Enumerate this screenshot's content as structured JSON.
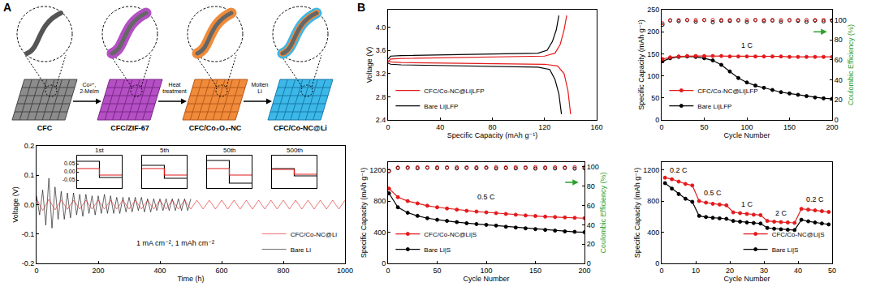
{
  "panel_labels": [
    "A",
    "B"
  ],
  "diagram": {
    "stages": [
      {
        "label": "CFC"
      },
      {
        "label": "CFC/ZIF-67"
      },
      {
        "label": "CFC/Co₃O₄-NC"
      },
      {
        "label": "CFC/Co-NC@Li"
      }
    ],
    "steps": [
      [
        "Co²⁺,",
        "2-MeIm"
      ],
      [
        "Heat",
        "treatment"
      ],
      [
        "Molten",
        "Li"
      ]
    ]
  },
  "chart_data": [
    {
      "type": "line",
      "x_label": "Time (h)",
      "y_label": "Voltage (V)",
      "xlim": [
        0,
        1000
      ],
      "xticks": [
        0,
        200,
        400,
        600,
        800,
        1000
      ],
      "ylim": [
        -0.2,
        0.2
      ],
      "yticks": [
        -0.2,
        -0.1,
        {
          "value": 0,
          "label": "0.0"
        },
        0.1,
        0.2
      ],
      "grid": false,
      "legend": "lower right",
      "annotations": [
        {
          "text": "1 mA cm⁻², 1 mAh cm⁻²",
          "x": 450,
          "y": -0.13
        }
      ],
      "series": [
        {
          "name": "Bare Li",
          "color": "#000000",
          "x": [
            0,
            10,
            20,
            30,
            40,
            50,
            60,
            70,
            80,
            90,
            100,
            110,
            120,
            130,
            140,
            150,
            160,
            170,
            180,
            190,
            200,
            210,
            220,
            230,
            240,
            250,
            260,
            270,
            280,
            290,
            300,
            310,
            320,
            330,
            340,
            350,
            360,
            370,
            380,
            390,
            400,
            410,
            420,
            430,
            440,
            450,
            460,
            470,
            480,
            490,
            500
          ],
          "values": [
            0.03,
            -0.035,
            0.05,
            -0.07,
            0.09,
            -0.08,
            0.06,
            -0.05,
            0.045,
            -0.05,
            0.04,
            -0.045,
            0.04,
            -0.035,
            0.035,
            -0.04,
            0.035,
            -0.03,
            0.03,
            -0.035,
            0.03,
            -0.03,
            0.035,
            -0.03,
            0.03,
            -0.03,
            0.025,
            -0.03,
            0.025,
            -0.025,
            0.025,
            -0.025,
            0.025,
            -0.02,
            0.025,
            -0.025,
            0.02,
            -0.025,
            0.02,
            -0.02,
            0.02,
            -0.02,
            0.02,
            -0.02,
            0.02,
            -0.02,
            0.02,
            -0.02,
            0.02,
            -0.02,
            0.02
          ]
        },
        {
          "name": "CFC/Co-NC@Li",
          "color": "#e41a1c",
          "x": [
            0,
            20,
            40,
            60,
            80,
            100,
            120,
            140,
            160,
            180,
            200,
            220,
            240,
            260,
            280,
            300,
            320,
            340,
            360,
            380,
            400,
            420,
            440,
            460,
            480,
            500,
            520,
            540,
            560,
            580,
            600,
            620,
            640,
            660,
            680,
            700,
            720,
            740,
            760,
            780,
            800,
            820,
            840,
            860,
            880,
            900,
            920,
            940,
            960,
            980,
            1000
          ],
          "values": [
            0.02,
            -0.02,
            0.018,
            -0.018,
            0.016,
            -0.016,
            0.015,
            -0.015,
            0.015,
            -0.015,
            0.015,
            -0.015,
            0.015,
            -0.015,
            0.015,
            -0.015,
            0.015,
            -0.015,
            0.015,
            -0.015,
            0.015,
            -0.015,
            0.015,
            -0.015,
            0.015,
            -0.015,
            0.015,
            -0.015,
            0.015,
            -0.015,
            0.015,
            -0.015,
            0.015,
            -0.015,
            0.015,
            -0.015,
            0.015,
            -0.015,
            0.015,
            -0.015,
            0.015,
            -0.015,
            0.015,
            -0.015,
            0.015,
            -0.015,
            0.015,
            -0.015,
            0.015,
            -0.015,
            0.015
          ]
        }
      ]
    },
    {
      "type": "line",
      "title": "1st",
      "xlim": [
        0,
        3
      ],
      "xticks": [],
      "ylim": [
        -0.1,
        0.1
      ],
      "yticks": [
        -0.05,
        {
          "value": 0,
          "label": "0.00"
        },
        0.05
      ],
      "tick_labels": "y",
      "grid": false,
      "series": [
        {
          "color": "#000000",
          "x": [
            0,
            1.5,
            1.5,
            3
          ],
          "values": [
            0.065,
            0.065,
            -0.035,
            -0.035
          ]
        },
        {
          "color": "#e41a1c",
          "x": [
            0,
            1.5,
            1.5,
            3
          ],
          "values": [
            0.02,
            0.02,
            -0.02,
            -0.02
          ]
        }
      ]
    },
    {
      "type": "line",
      "title": "5th",
      "xlim": [
        0,
        3
      ],
      "xticks": [],
      "ylim": [
        -0.1,
        0.1
      ],
      "yticks": [],
      "tick_labels": false,
      "grid": false,
      "series": [
        {
          "color": "#000000",
          "x": [
            0,
            1.5,
            1.5,
            3
          ],
          "values": [
            0.04,
            0.04,
            -0.04,
            -0.04
          ]
        },
        {
          "color": "#e41a1c",
          "x": [
            0,
            1.5,
            1.5,
            3
          ],
          "values": [
            0.02,
            0.02,
            -0.02,
            -0.02
          ]
        }
      ]
    },
    {
      "type": "line",
      "title": "50th",
      "xlim": [
        0,
        3
      ],
      "xticks": [],
      "ylim": [
        -0.1,
        0.1
      ],
      "yticks": [],
      "tick_labels": false,
      "grid": false,
      "series": [
        {
          "color": "#000000",
          "x": [
            0,
            1.5,
            1.5,
            3
          ],
          "values": [
            0.07,
            0.07,
            -0.07,
            -0.07
          ]
        },
        {
          "color": "#e41a1c",
          "x": [
            0,
            1.5,
            1.5,
            3
          ],
          "values": [
            0.02,
            0.02,
            -0.02,
            -0.02
          ]
        }
      ]
    },
    {
      "type": "line",
      "title": "500th",
      "xlim": [
        0,
        3
      ],
      "xticks": [],
      "ylim": [
        -0.1,
        0.1
      ],
      "yticks": [],
      "tick_labels": false,
      "grid": false,
      "series": [
        {
          "color": "#000000",
          "x": [
            0,
            1.5,
            1.5,
            3
          ],
          "values": [
            0.02,
            0.02,
            -0.025,
            -0.025
          ]
        },
        {
          "color": "#e41a1c",
          "x": [
            0,
            1.5,
            1.5,
            3
          ],
          "values": [
            0.015,
            0.015,
            -0.015,
            -0.015
          ]
        }
      ]
    },
    {
      "type": "line",
      "x_label": "Specific Capacity (mAh g⁻¹)",
      "y_label": "Voltage (V)",
      "xlim": [
        0,
        160
      ],
      "xticks": [
        0,
        40,
        80,
        120,
        160
      ],
      "ylim": [
        2.4,
        4.3
      ],
      "yticks": [
        2.4,
        2.8,
        3.2,
        3.6,
        {
          "value": 4,
          "label": "4.0"
        }
      ],
      "grid": false,
      "legend": "lower left",
      "series": [
        {
          "name": "Bare Li|LFP",
          "color": "#000000",
          "x": [
            0,
            2,
            10,
            40,
            80,
            115,
            122,
            126,
            129,
            131,
            null,
            0,
            2,
            10,
            40,
            80,
            115,
            124,
            128,
            131,
            133
          ],
          "values": [
            3.45,
            3.5,
            3.51,
            3.52,
            3.53,
            3.55,
            3.6,
            3.75,
            3.95,
            4.2,
            null,
            3.38,
            3.36,
            3.35,
            3.34,
            3.33,
            3.31,
            3.27,
            3.1,
            2.85,
            2.5
          ]
        },
        {
          "name": "CFC/Co-NC@Li|LFP",
          "color": "#e41a1c",
          "x": [
            0,
            2,
            10,
            40,
            80,
            120,
            128,
            132,
            135,
            137,
            null,
            0,
            2,
            10,
            40,
            80,
            120,
            130,
            135,
            138,
            140
          ],
          "values": [
            3.4,
            3.45,
            3.46,
            3.47,
            3.48,
            3.5,
            3.55,
            3.7,
            3.95,
            4.2,
            null,
            3.42,
            3.4,
            3.39,
            3.38,
            3.37,
            3.36,
            3.33,
            3.2,
            2.9,
            2.5
          ]
        }
      ]
    },
    {
      "type": "line",
      "x_label": "Cycle Number",
      "y_label": "Specific Capacity (mAh g⁻¹)",
      "y2_label": "Coulombic Efficiency (%)",
      "xlim": [
        0,
        200
      ],
      "xticks": [
        0,
        50,
        100,
        150,
        200
      ],
      "ylim": [
        0,
        250
      ],
      "yticks": [
        0,
        50,
        100,
        150,
        200,
        250
      ],
      "y2lim": [
        0,
        110
      ],
      "y2ticks": [
        0,
        20,
        40,
        60,
        80,
        100
      ],
      "grid": false,
      "legend": "lower left",
      "annotations": [
        {
          "text": "1 C",
          "x": 100,
          "y": 170
        }
      ],
      "x": [
        1,
        10,
        20,
        30,
        40,
        50,
        60,
        70,
        80,
        90,
        100,
        110,
        120,
        130,
        140,
        150,
        160,
        170,
        180,
        190,
        200
      ],
      "series": [
        {
          "name": "Bare Li|LFP",
          "color": "#000000",
          "marker": "circle",
          "values": [
            133,
            140,
            143,
            144,
            143,
            140,
            135,
            125,
            110,
            95,
            85,
            78,
            73,
            68,
            63,
            60,
            57,
            54,
            51,
            49,
            48
          ]
        },
        {
          "name": "CFC/Co-NC@Li|LFP",
          "color": "#e41a1c",
          "marker": "circle",
          "values": [
            138,
            142,
            144,
            145,
            145,
            145,
            145,
            145,
            144,
            144,
            144,
            144,
            144,
            144,
            144,
            143,
            143,
            143,
            143,
            143,
            143
          ]
        },
        {
          "type": "scatter",
          "axis": "y2",
          "color": "#000000",
          "marker": "circle-open",
          "values": [
            95.0,
            99.2,
            98.5,
            99.5,
            98.0,
            99.6,
            97.5,
            99.0,
            98.8,
            99.3,
            97.8,
            99.5,
            98.6,
            99.2,
            98.0,
            99.4,
            98.9,
            97.9,
            99.1,
            98.4,
            99.0
          ]
        },
        {
          "type": "scatter",
          "axis": "y2",
          "color": "#e41a1c",
          "marker": "circle-open",
          "values": [
            96.5,
            99.6,
            99.7,
            99.8,
            99.7,
            99.8,
            99.7,
            99.8,
            99.7,
            99.8,
            99.7,
            99.8,
            99.7,
            99.8,
            99.7,
            99.8,
            99.7,
            99.8,
            99.7,
            99.8,
            99.7
          ]
        }
      ]
    },
    {
      "type": "line",
      "x_label": "Cycle Number",
      "y_label": "Specific Capacity (mAh g⁻¹)",
      "y2_label": "Coulombic Efficiency (%)",
      "xlim": [
        0,
        200
      ],
      "xticks": [
        0,
        50,
        100,
        150,
        200
      ],
      "ylim": [
        0,
        1300
      ],
      "yticks": [
        0,
        400,
        800,
        1200
      ],
      "y2lim": [
        0,
        105
      ],
      "y2ticks": [
        0,
        20,
        40,
        60,
        80,
        100
      ],
      "grid": false,
      "legend": "lower left",
      "annotations": [
        {
          "text": "0.5 C",
          "x": 100,
          "y": 850
        }
      ],
      "x": [
        1,
        10,
        20,
        30,
        40,
        50,
        60,
        70,
        80,
        90,
        100,
        110,
        120,
        130,
        140,
        150,
        160,
        170,
        180,
        190,
        200
      ],
      "series": [
        {
          "name": "Bare Li|S",
          "color": "#000000",
          "marker": "circle",
          "values": [
            900,
            720,
            650,
            610,
            580,
            560,
            545,
            530,
            515,
            505,
            495,
            485,
            470,
            460,
            450,
            440,
            430,
            420,
            410,
            405,
            400
          ]
        },
        {
          "name": "CFC/Co-NC@Li|S",
          "color": "#e41a1c",
          "marker": "circle",
          "values": [
            960,
            850,
            800,
            770,
            740,
            720,
            705,
            690,
            675,
            665,
            655,
            645,
            635,
            625,
            615,
            608,
            600,
            595,
            590,
            585,
            580
          ]
        },
        {
          "type": "scatter",
          "axis": "y2",
          "color": "#000000",
          "marker": "circle-open",
          "values": [
            95.5,
            98.8,
            99.0,
            98.6,
            99.1,
            98.7,
            99.0,
            98.5,
            98.9,
            98.6,
            99.0,
            98.4,
            98.8,
            98.5,
            98.9,
            98.3,
            98.7,
            98.4,
            98.8,
            98.2,
            98.6
          ]
        },
        {
          "type": "scatter",
          "axis": "y2",
          "color": "#e41a1c",
          "marker": "circle-open",
          "values": [
            96.0,
            99.5,
            99.6,
            99.7,
            99.6,
            99.7,
            99.6,
            99.7,
            99.6,
            99.7,
            99.6,
            99.7,
            99.6,
            99.7,
            99.6,
            99.7,
            99.6,
            99.7,
            99.6,
            99.7,
            99.6
          ]
        }
      ]
    },
    {
      "type": "line",
      "x_label": "Cycle Number",
      "y_label": "Specific Capacity (mAh g⁻¹)",
      "xlim": [
        0,
        50
      ],
      "xticks": [
        0,
        10,
        20,
        30,
        40,
        50
      ],
      "ylim": [
        0,
        1300
      ],
      "yticks": [
        0,
        400,
        800,
        1200
      ],
      "grid": false,
      "legend": "lower right",
      "annotations": [
        {
          "text": "0.2 C",
          "x": 5,
          "y": 1200
        },
        {
          "text": "0.5 C",
          "x": 15,
          "y": 900
        },
        {
          "text": "1 C",
          "x": 25,
          "y": 760
        },
        {
          "text": "2 C",
          "x": 35,
          "y": 650
        },
        {
          "text": "0.2 C",
          "x": 45,
          "y": 820
        }
      ],
      "x": [
        1,
        3,
        5,
        7,
        9,
        11,
        13,
        15,
        17,
        19,
        21,
        23,
        25,
        27,
        29,
        31,
        33,
        35,
        37,
        39,
        41,
        43,
        45,
        47,
        49
      ],
      "series": [
        {
          "name": "Bare Li|S",
          "color": "#000000",
          "marker": "circle",
          "values": [
            1030,
            960,
            890,
            830,
            790,
            610,
            595,
            585,
            578,
            572,
            545,
            535,
            525,
            518,
            512,
            455,
            445,
            438,
            432,
            428,
            560,
            540,
            525,
            512,
            500
          ]
        },
        {
          "name": "CFC/Co-NC@Li|S",
          "color": "#e41a1c",
          "marker": "circle",
          "values": [
            1100,
            1080,
            1050,
            1020,
            1000,
            800,
            780,
            765,
            755,
            745,
            655,
            645,
            635,
            625,
            620,
            545,
            535,
            530,
            525,
            520,
            700,
            690,
            680,
            670,
            660
          ]
        }
      ]
    }
  ]
}
